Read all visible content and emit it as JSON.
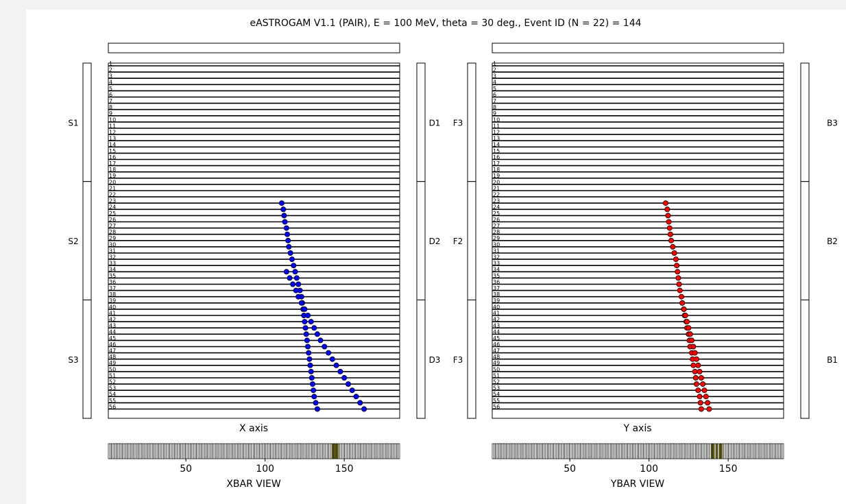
{
  "title": "eASTROGAM V1.1 (PAIR), E = 100 MeV, theta = 30 deg., Event ID (N = 22) = 144",
  "colors": {
    "x_hits": "#0000ff",
    "y_hits": "#ff0000",
    "bar_fill": "#ffffff",
    "bar_hit": "#7a7a00"
  },
  "chart_data": [
    {
      "type": "scatter",
      "panel": "x-view",
      "xlabel": "X axis",
      "xlim": [
        1,
        185
      ],
      "ylim": [
        1,
        56
      ],
      "layers": [
        "1",
        "2",
        "3",
        "4",
        "5",
        "6",
        "7",
        "8",
        "9",
        "10",
        "11",
        "12",
        "13",
        "14",
        "15",
        "16",
        "17",
        "18",
        "19",
        "20",
        "21",
        "22",
        "23",
        "24",
        "25",
        "26",
        "27",
        "28",
        "29",
        "30",
        "31",
        "32",
        "33",
        "34",
        "35",
        "36",
        "37",
        "38",
        "39",
        "40",
        "41",
        "42",
        "43",
        "44",
        "45",
        "46",
        "47",
        "48",
        "49",
        "50",
        "51",
        "52",
        "53",
        "54",
        "55",
        "56"
      ],
      "left_sections": [
        "S1",
        "S2",
        "S3"
      ],
      "right_sections": [
        "D1",
        "D2",
        "D3"
      ],
      "marker_color": "#0000ff",
      "series": [
        {
          "x": [
            110.5,
            111.5,
            112,
            112.5,
            113.5,
            114,
            114.5,
            115,
            116,
            117,
            118,
            119,
            120,
            121,
            122,
            123,
            123.5,
            124,
            124.5,
            125,
            125.5,
            126,
            126.5,
            127,
            127.5,
            128,
            128.5,
            129,
            129.5,
            130,
            130.5,
            131,
            132,
            133
          ],
          "y": [
            23,
            24,
            25,
            26,
            27,
            28,
            29,
            30,
            31,
            32,
            33,
            34,
            35,
            36,
            37,
            38,
            39,
            40,
            41,
            42,
            43,
            44,
            45,
            46,
            47,
            48,
            49,
            50,
            51,
            52,
            53,
            54,
            55,
            56
          ]
        },
        {
          "x": [
            113.5,
            115.5,
            117.5,
            119.5,
            121,
            123,
            125,
            127,
            129,
            131,
            133,
            135,
            137.5,
            140,
            142.5,
            145,
            147.5,
            150,
            152.5,
            155,
            157.5,
            160,
            162.5
          ],
          "y": [
            34,
            35,
            36,
            37,
            38,
            39,
            40,
            41,
            42,
            43,
            44,
            45,
            46,
            47,
            48,
            49,
            50,
            51,
            52,
            53,
            54,
            55,
            56
          ]
        }
      ]
    },
    {
      "type": "scatter",
      "panel": "y-view",
      "xlabel": "Y axis",
      "xlim": [
        1,
        185
      ],
      "ylim": [
        1,
        56
      ],
      "layers": [
        "1",
        "2",
        "3",
        "4",
        "5",
        "6",
        "7",
        "8",
        "9",
        "10",
        "11",
        "12",
        "13",
        "14",
        "15",
        "16",
        "17",
        "18",
        "19",
        "20",
        "21",
        "22",
        "23",
        "24",
        "25",
        "26",
        "27",
        "28",
        "29",
        "30",
        "31",
        "32",
        "33",
        "34",
        "35",
        "36",
        "37",
        "38",
        "39",
        "40",
        "41",
        "42",
        "43",
        "44",
        "45",
        "46",
        "47",
        "48",
        "49",
        "50",
        "51",
        "52",
        "53",
        "54",
        "55",
        "56"
      ],
      "left_sections": [
        "F3",
        "F2",
        "F3"
      ],
      "right_sections": [
        "B3",
        "B2",
        "B1"
      ],
      "marker_color": "#ff0000",
      "series": [
        {
          "x": [
            110.5,
            111.5,
            112,
            112.5,
            113,
            113.5,
            114,
            115,
            116,
            117,
            117.5,
            118,
            118.5,
            119,
            119.5,
            120.5,
            121,
            122,
            122.5,
            123.5,
            124,
            125,
            125.5,
            126,
            127,
            127.5,
            128,
            129,
            129.5,
            130,
            131,
            132,
            132.5,
            133
          ],
          "y": [
            23,
            24,
            25,
            26,
            27,
            28,
            29,
            30,
            31,
            32,
            33,
            34,
            35,
            36,
            37,
            38,
            39,
            40,
            41,
            42,
            43,
            44,
            45,
            46,
            47,
            48,
            49,
            50,
            51,
            52,
            53,
            54,
            55,
            56
          ]
        },
        {
          "x": [
            121,
            122,
            123,
            124,
            125,
            126,
            127,
            128,
            129,
            130,
            131,
            132,
            133,
            134,
            135,
            136,
            137,
            138
          ],
          "y": [
            39,
            40,
            41,
            42,
            43,
            44,
            45,
            46,
            47,
            48,
            49,
            50,
            51,
            52,
            53,
            54,
            55,
            56
          ]
        }
      ]
    },
    {
      "type": "heatmap",
      "panel": "xbar-view",
      "xlabel": "XBAR VIEW",
      "xlim": [
        1,
        185
      ],
      "xticks": [
        "50",
        "100",
        "150"
      ],
      "hit_bars": [
        143,
        144,
        145,
        146
      ]
    },
    {
      "type": "heatmap",
      "panel": "ybar-view",
      "xlabel": "YBAR VIEW",
      "xlim": [
        1,
        185
      ],
      "xticks": [
        "50",
        "100",
        "150"
      ],
      "hit_bars": [
        140,
        141,
        143,
        145,
        146
      ]
    }
  ]
}
